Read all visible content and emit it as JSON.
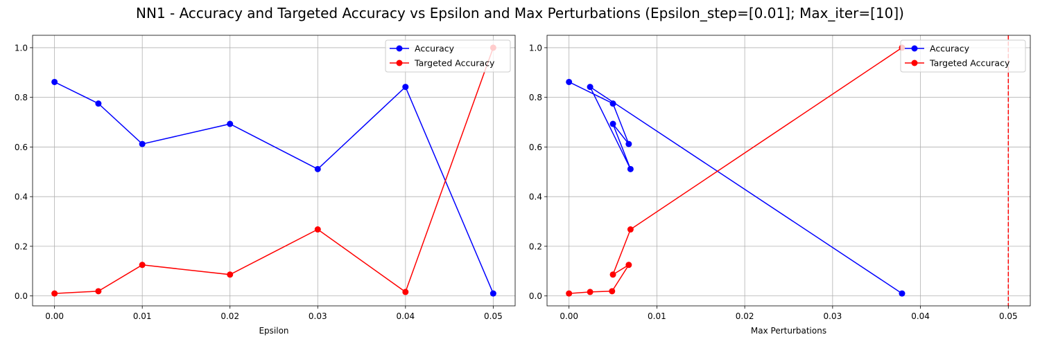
{
  "figure": {
    "suptitle": "NN1 - Accuracy and Targeted Accuracy vs Epsilon and Max Perturbations (Epsilon_step=[0.01]; Max_iter=[10])"
  },
  "chart_data": [
    {
      "type": "line",
      "xlabel": "Epsilon",
      "ylabel": "",
      "xlim": [
        -0.0025,
        0.0525
      ],
      "ylim": [
        -0.04,
        1.05
      ],
      "xticks": [
        0.0,
        0.01,
        0.02,
        0.03,
        0.04,
        0.05
      ],
      "xtick_labels": [
        "0.00",
        "0.01",
        "0.02",
        "0.03",
        "0.04",
        "0.05"
      ],
      "yticks": [
        0.0,
        0.2,
        0.4,
        0.6,
        0.8,
        1.0
      ],
      "ytick_labels": [
        "0.0",
        "0.2",
        "0.4",
        "0.6",
        "0.8",
        "1.0"
      ],
      "grid": true,
      "legend": "top-right",
      "series": [
        {
          "name": "Accuracy",
          "color": "#0000ff",
          "x": [
            0.0,
            0.005,
            0.01,
            0.02,
            0.03,
            0.04,
            0.05
          ],
          "y": [
            0.862,
            0.775,
            0.612,
            0.693,
            0.511,
            0.842,
            0.01
          ]
        },
        {
          "name": "Targeted Accuracy",
          "color": "#ff0000",
          "x": [
            0.0,
            0.005,
            0.01,
            0.02,
            0.03,
            0.04,
            0.05
          ],
          "y": [
            0.01,
            0.019,
            0.125,
            0.086,
            0.268,
            0.016,
            1.0
          ]
        }
      ],
      "vlines": []
    },
    {
      "type": "line",
      "xlabel": "Max Perturbations",
      "ylabel": "",
      "xlim": [
        -0.0025,
        0.0525
      ],
      "ylim": [
        -0.04,
        1.05
      ],
      "xticks": [
        0.0,
        0.01,
        0.02,
        0.03,
        0.04,
        0.05
      ],
      "xtick_labels": [
        "0.00",
        "0.01",
        "0.02",
        "0.03",
        "0.04",
        "0.05"
      ],
      "yticks": [
        0.0,
        0.2,
        0.4,
        0.6,
        0.8,
        1.0
      ],
      "ytick_labels": [
        "0.0",
        "0.2",
        "0.4",
        "0.6",
        "0.8",
        "1.0"
      ],
      "grid": true,
      "legend": "top-right",
      "series": [
        {
          "name": "Accuracy",
          "color": "#0000ff",
          "x": [
            0.0,
            0.005,
            0.0068,
            0.005,
            0.007,
            0.0024,
            0.0379
          ],
          "y": [
            0.862,
            0.775,
            0.612,
            0.693,
            0.511,
            0.842,
            0.01
          ]
        },
        {
          "name": "Targeted Accuracy",
          "color": "#ff0000",
          "x": [
            0.0,
            0.0024,
            0.0049,
            0.0068,
            0.005,
            0.007,
            0.0379
          ],
          "y": [
            0.01,
            0.016,
            0.019,
            0.125,
            0.086,
            0.268,
            1.0
          ]
        }
      ],
      "vlines": [
        {
          "x": 0.05,
          "color": "#ff0000",
          "style": "dashed"
        }
      ]
    }
  ]
}
